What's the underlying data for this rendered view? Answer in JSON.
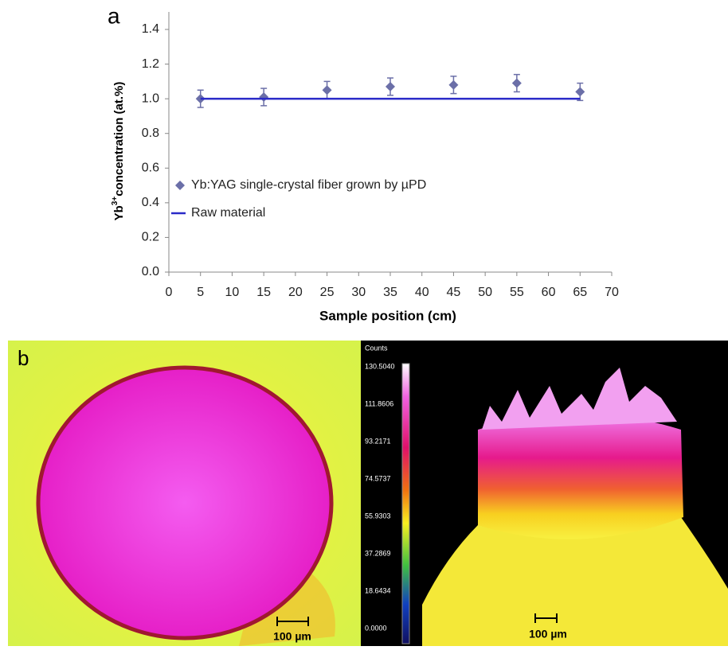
{
  "chart_data": {
    "type": "scatter",
    "panel_label": "a",
    "x_label": "Sample position (cm)",
    "y_label": {
      "base": "Yb",
      "sup": "3+",
      "rest": "concentration (at.%)"
    },
    "xlim": [
      0,
      70
    ],
    "xticks": [
      0,
      5,
      10,
      15,
      20,
      25,
      30,
      35,
      40,
      45,
      50,
      55,
      60,
      65,
      70
    ],
    "ylim": [
      0,
      1.4
    ],
    "yticks": [
      {
        "value": 0,
        "label": "0.0"
      },
      {
        "value": 0.2,
        "label": "0.2"
      },
      {
        "value": 0.4,
        "label": "0.4"
      },
      {
        "value": 0.6,
        "label": "0.6"
      },
      {
        "value": 0.8,
        "label": "0.8"
      },
      {
        "value": 1,
        "label": "1.0"
      },
      {
        "value": 1.2,
        "label": "1.2"
      },
      {
        "value": 1.4,
        "label": "1.4"
      }
    ],
    "series": [
      {
        "name": "Yb:YAG single-crystal fiber grown by µPD",
        "type": "scatter",
        "color": "#6b6fa8",
        "x": [
          5,
          15,
          25,
          35,
          45,
          55,
          65
        ],
        "values": [
          1.0,
          1.01,
          1.05,
          1.07,
          1.08,
          1.09,
          1.04
        ],
        "errors": [
          0.05,
          0.05,
          0.05,
          0.05,
          0.05,
          0.05,
          0.05
        ]
      },
      {
        "name": "Raw material",
        "type": "line",
        "color": "#2a2ac8",
        "x": [
          5,
          65
        ],
        "values": [
          1.0,
          1.0
        ]
      }
    ]
  },
  "panel_b": {
    "label": "b",
    "colorbar_title": "Counts",
    "colorbar_labels": [
      "130.5040",
      "111.8606",
      "93.2171",
      "74.5737",
      "55.9303",
      "37.2869",
      "18.6434",
      "0.0000"
    ],
    "scale_bar_left": "100 µm",
    "scale_bar_right": "100 µm"
  }
}
